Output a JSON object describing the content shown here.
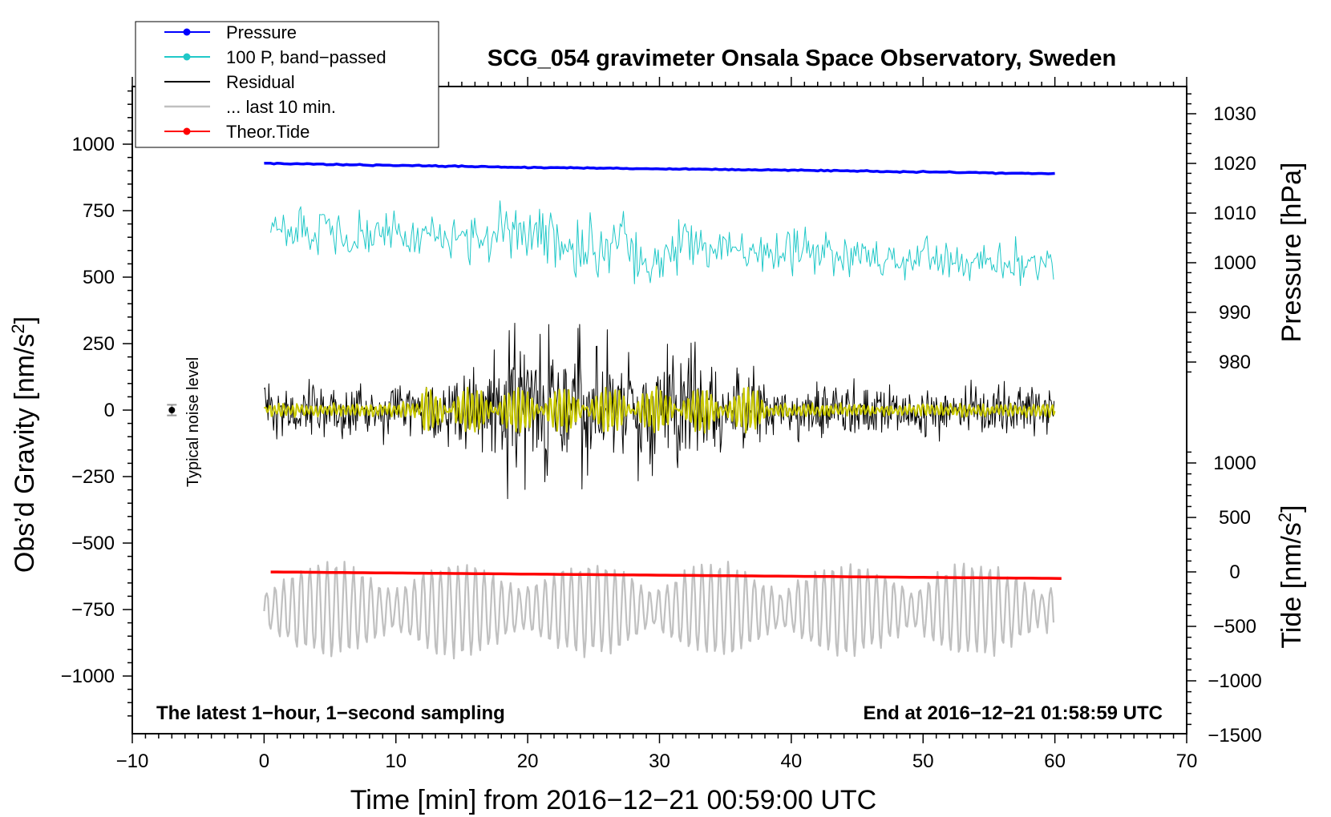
{
  "chart_data": {
    "type": "line",
    "title": "SCG_054 gravimeter Onsala Space Observatory, Sweden",
    "xlabel": "Time [min] from 2016−12−21 00:59:00 UTC",
    "ylabel": "Obs’d Gravity [nm/s",
    "ylabel_sup": "2",
    "ylabel_end": "]",
    "right_top_label": "Pressure [hPa]",
    "right_bottom_label": "Tide [nm/s",
    "right_bottom_sup": "2",
    "right_bottom_end": "]",
    "note_left": "The latest 1−hour, 1−second sampling",
    "note_right": "End at 2016−12−21 01:58:59 UTC",
    "noise_label": "Typical noise level",
    "xlim": [
      -10,
      70
    ],
    "ylim": [
      -1200,
      1200
    ],
    "x_ticks": [
      -10,
      0,
      10,
      20,
      30,
      40,
      50,
      60,
      70
    ],
    "x_tick_labels": [
      "−10",
      "0",
      "10",
      "20",
      "30",
      "40",
      "50",
      "60",
      "70"
    ],
    "y_ticks": [
      1000,
      750,
      500,
      250,
      0,
      -250,
      -500,
      -750,
      -1000
    ],
    "y_tick_labels": [
      "1000",
      "750",
      "500",
      "250",
      "0",
      "−250",
      "−500",
      "−750",
      "−1000"
    ],
    "pressure_ticks": [
      1030,
      1020,
      1010,
      1000,
      990,
      980
    ],
    "pressure_tick_labels": [
      "1030",
      "1020",
      "1010",
      "1000",
      "990",
      "980"
    ],
    "tide_ticks": [
      1000,
      500,
      0,
      -500,
      -1000,
      -1500
    ],
    "tide_tick_labels": [
      "1000",
      "500",
      "0",
      "−500",
      "−1000",
      "−1500"
    ],
    "legend": [
      {
        "name": "Pressure",
        "color": "#0000ff",
        "marker": true
      },
      {
        "name": "100 P, band−passed",
        "color": "#20c8c8",
        "marker": true
      },
      {
        "name": "Residual",
        "color": "#000000",
        "marker": false
      },
      {
        "name": "... last 10 min.",
        "color": "#c0c0c0",
        "marker": false
      },
      {
        "name": "Theor.Tide",
        "color": "#ff0000",
        "marker": true
      }
    ],
    "series": [
      {
        "name": "Pressure",
        "color": "#0000ff",
        "axis": "pressure",
        "x": [
          0,
          10,
          20,
          30,
          40,
          50,
          60
        ],
        "values": [
          1020.0,
          1019.6,
          1019.2,
          1018.9,
          1018.6,
          1018.3,
          1017.9
        ]
      },
      {
        "name": "100 P, band−passed",
        "color": "#20c8c8",
        "axis": "gravity",
        "x": [
          0,
          10,
          20,
          30,
          40,
          50,
          60
        ],
        "values": [
          690,
          660,
          640,
          610,
          590,
          560,
          550
        ]
      },
      {
        "name": "Residual",
        "color": "#000000",
        "axis": "gravity",
        "x": [
          0,
          10,
          20,
          30,
          40,
          50,
          60
        ],
        "values": [
          0,
          0,
          0,
          0,
          0,
          0,
          0
        ]
      },
      {
        "name": "... last 10 min.",
        "color": "#c0c0c0",
        "axis": "gravity",
        "x": [
          0,
          10,
          20,
          30,
          40,
          50,
          60
        ],
        "values": [
          -750,
          -750,
          -750,
          -750,
          -750,
          -750,
          -750
        ]
      },
      {
        "name": "Theor.Tide",
        "color": "#ff0000",
        "axis": "tide",
        "x": [
          0,
          10,
          20,
          30,
          40,
          50,
          60.5
        ],
        "values": [
          0,
          -10,
          -20,
          -30,
          -40,
          -50,
          -60
        ]
      },
      {
        "name": "Residual smoothed",
        "color": "#c8c800",
        "axis": "gravity",
        "x": [
          0,
          10,
          20,
          30,
          40,
          50,
          60
        ],
        "values": [
          0,
          0,
          0,
          0,
          0,
          0,
          0
        ]
      }
    ],
    "noise_point": {
      "x": -7,
      "y": 0,
      "err": 20
    }
  }
}
